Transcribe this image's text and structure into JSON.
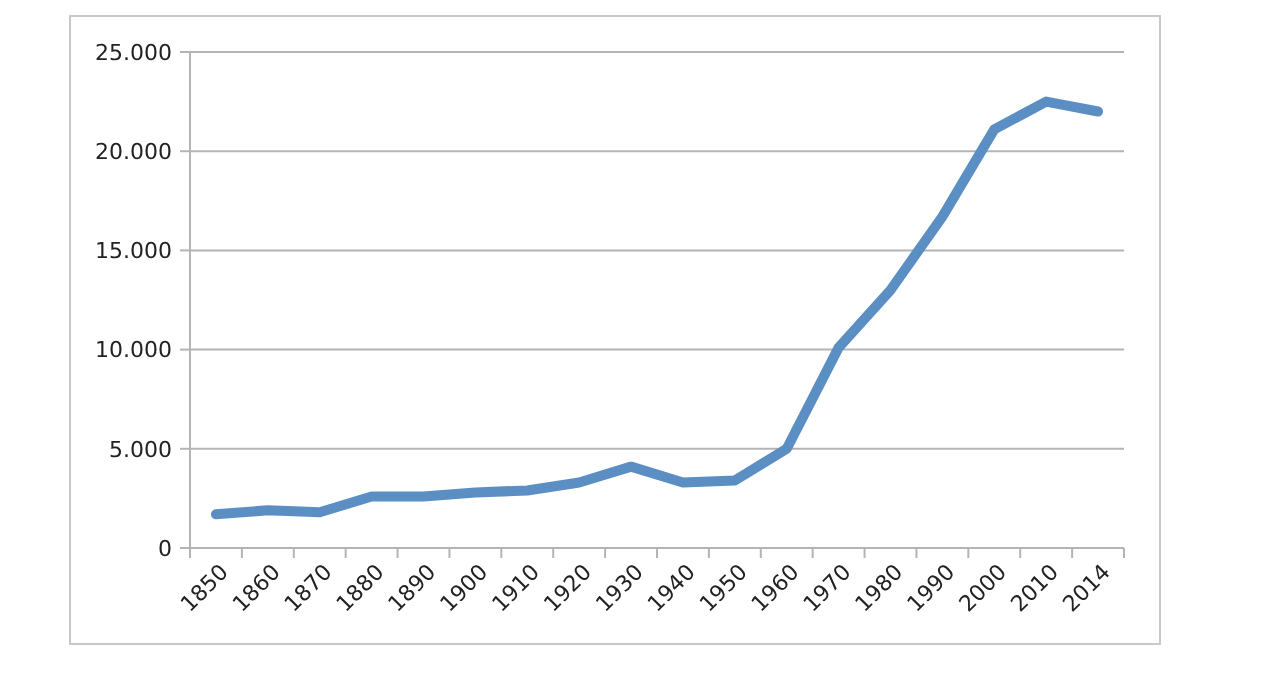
{
  "chart_data": {
    "type": "line",
    "categories": [
      "1850",
      "1860",
      "1870",
      "1880",
      "1890",
      "1900",
      "1910",
      "1920",
      "1930",
      "1940",
      "1950",
      "1960",
      "1970",
      "1980",
      "1990",
      "2000",
      "2010",
      "2014"
    ],
    "series": [
      {
        "color": "#5b8fc3",
        "values": [
          1700,
          1900,
          1800,
          2600,
          2600,
          2800,
          2900,
          3300,
          4100,
          3300,
          3400,
          5000,
          10100,
          13000,
          16700,
          21100,
          22500,
          22000
        ]
      }
    ],
    "ylim": [
      0,
      25000
    ],
    "yticks": [
      0,
      {
        "value": 5000,
        "label": "5.000"
      },
      {
        "value": 10000,
        "label": "10.000"
      },
      {
        "value": 15000,
        "label": "15.000"
      },
      {
        "value": 20000,
        "label": "20.000"
      },
      {
        "value": 25000,
        "label": "25.000"
      }
    ],
    "grid": "y",
    "marker": "none",
    "line_style": "solid"
  }
}
